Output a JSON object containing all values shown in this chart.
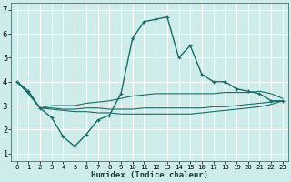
{
  "xlabel": "Humidex (Indice chaleur)",
  "background_color": "#ceecea",
  "grid_color": "#ffffff",
  "line_color": "#1a6b6b",
  "x_ticks": [
    0,
    1,
    2,
    3,
    4,
    5,
    6,
    7,
    8,
    9,
    10,
    11,
    12,
    13,
    14,
    15,
    16,
    17,
    18,
    19,
    20,
    21,
    22,
    23
  ],
  "y_ticks": [
    1,
    2,
    3,
    4,
    5,
    6,
    7
  ],
  "ylim": [
    0.7,
    7.3
  ],
  "xlim": [
    -0.5,
    23.5
  ],
  "series": [
    [
      4.0,
      3.6,
      2.9,
      2.5,
      1.7,
      1.3,
      1.8,
      2.4,
      2.6,
      3.5,
      5.8,
      6.5,
      6.6,
      6.7,
      5.0,
      5.5,
      4.3,
      4.0,
      4.0,
      3.7,
      3.6,
      3.5,
      3.2,
      3.2
    ],
    [
      4.0,
      3.5,
      2.9,
      3.0,
      3.0,
      3.0,
      3.1,
      3.15,
      3.2,
      3.3,
      3.4,
      3.45,
      3.5,
      3.5,
      3.5,
      3.5,
      3.5,
      3.5,
      3.55,
      3.55,
      3.55,
      3.6,
      3.5,
      3.3
    ],
    [
      4.0,
      3.5,
      2.9,
      2.9,
      2.85,
      2.85,
      2.9,
      2.9,
      2.85,
      2.85,
      2.85,
      2.9,
      2.9,
      2.9,
      2.9,
      2.9,
      2.9,
      2.95,
      2.95,
      3.0,
      3.05,
      3.1,
      3.15,
      3.2
    ],
    [
      4.0,
      3.5,
      2.9,
      2.85,
      2.8,
      2.75,
      2.75,
      2.7,
      2.7,
      2.65,
      2.65,
      2.65,
      2.65,
      2.65,
      2.65,
      2.65,
      2.7,
      2.75,
      2.8,
      2.85,
      2.9,
      2.95,
      3.05,
      3.2
    ]
  ]
}
